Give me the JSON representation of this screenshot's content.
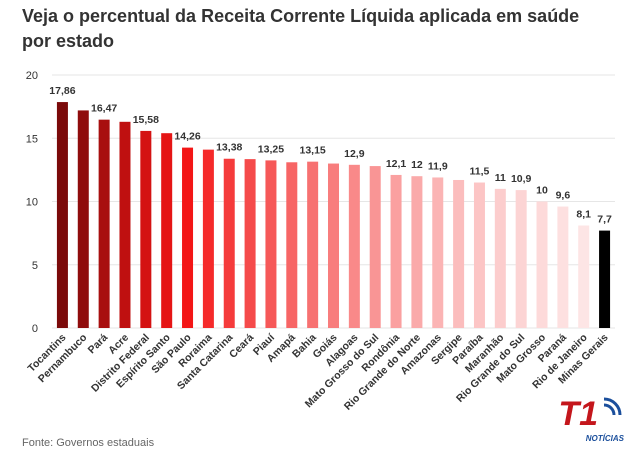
{
  "chart_data": {
    "type": "bar",
    "title": "Veja o percentual da Receita Corrente Líquida aplicada em saúde por estado",
    "source": "Fonte: Governos estaduais",
    "logo": {
      "mark": "T1",
      "label": "NOTÍCIAS"
    },
    "categories": [
      "Tocantins",
      "Pernambuco",
      "Pará",
      "Acre",
      "Distrito Federal",
      "Espírito Santo",
      "São Paulo",
      "Roraima",
      "Santa Catarina",
      "Ceará",
      "Piauí",
      "Amapá",
      "Bahia",
      "Goiás",
      "Alagoas",
      "Mato Grosso do Sul",
      "Rondônia",
      "Rio Grande do Norte",
      "Amazonas",
      "Sergipe",
      "Paraíba",
      "Maranhão",
      "Rio Grande do Sul",
      "Mato Grosso",
      "Paraná",
      "Rio de Janeiro",
      "Minas Gerais"
    ],
    "values": [
      17.86,
      17.2,
      16.47,
      16.3,
      15.58,
      15.4,
      14.26,
      14.1,
      13.38,
      13.35,
      13.25,
      13.1,
      13.15,
      13.0,
      12.9,
      12.8,
      12.1,
      12,
      11.9,
      11.7,
      11.5,
      11,
      10.9,
      10,
      9.6,
      8.1,
      7.7
    ],
    "value_labels": [
      "17,86",
      null,
      "16,47",
      null,
      "15,58",
      null,
      "14,26",
      null,
      "13,38",
      null,
      "13,25",
      null,
      "13,15",
      null,
      "12,9",
      null,
      "12,1",
      "12",
      "11,9",
      null,
      "11,5",
      "11",
      "10,9",
      "10",
      "9,6",
      "8,1",
      "7,7"
    ],
    "colors": [
      "#7b0a0a",
      "#8f0c0c",
      "#a80f0f",
      "#bf1010",
      "#d41212",
      "#e51515",
      "#f31616",
      "#f52a2a",
      "#f53b3b",
      "#f54a4a",
      "#f65858",
      "#f76565",
      "#f77171",
      "#f87d7d",
      "#f98989",
      "#f99595",
      "#faa0a0",
      "#faaaaa",
      "#fbb4b4",
      "#fbbdbd",
      "#fcc5c5",
      "#fccdcd",
      "#fcd4d4",
      "#fddada",
      "#fde0e0",
      "#fde5e5",
      "#000000"
    ],
    "ylim": [
      0,
      20
    ],
    "yticks": [
      0,
      5,
      10,
      15,
      20
    ],
    "grid": true
  }
}
